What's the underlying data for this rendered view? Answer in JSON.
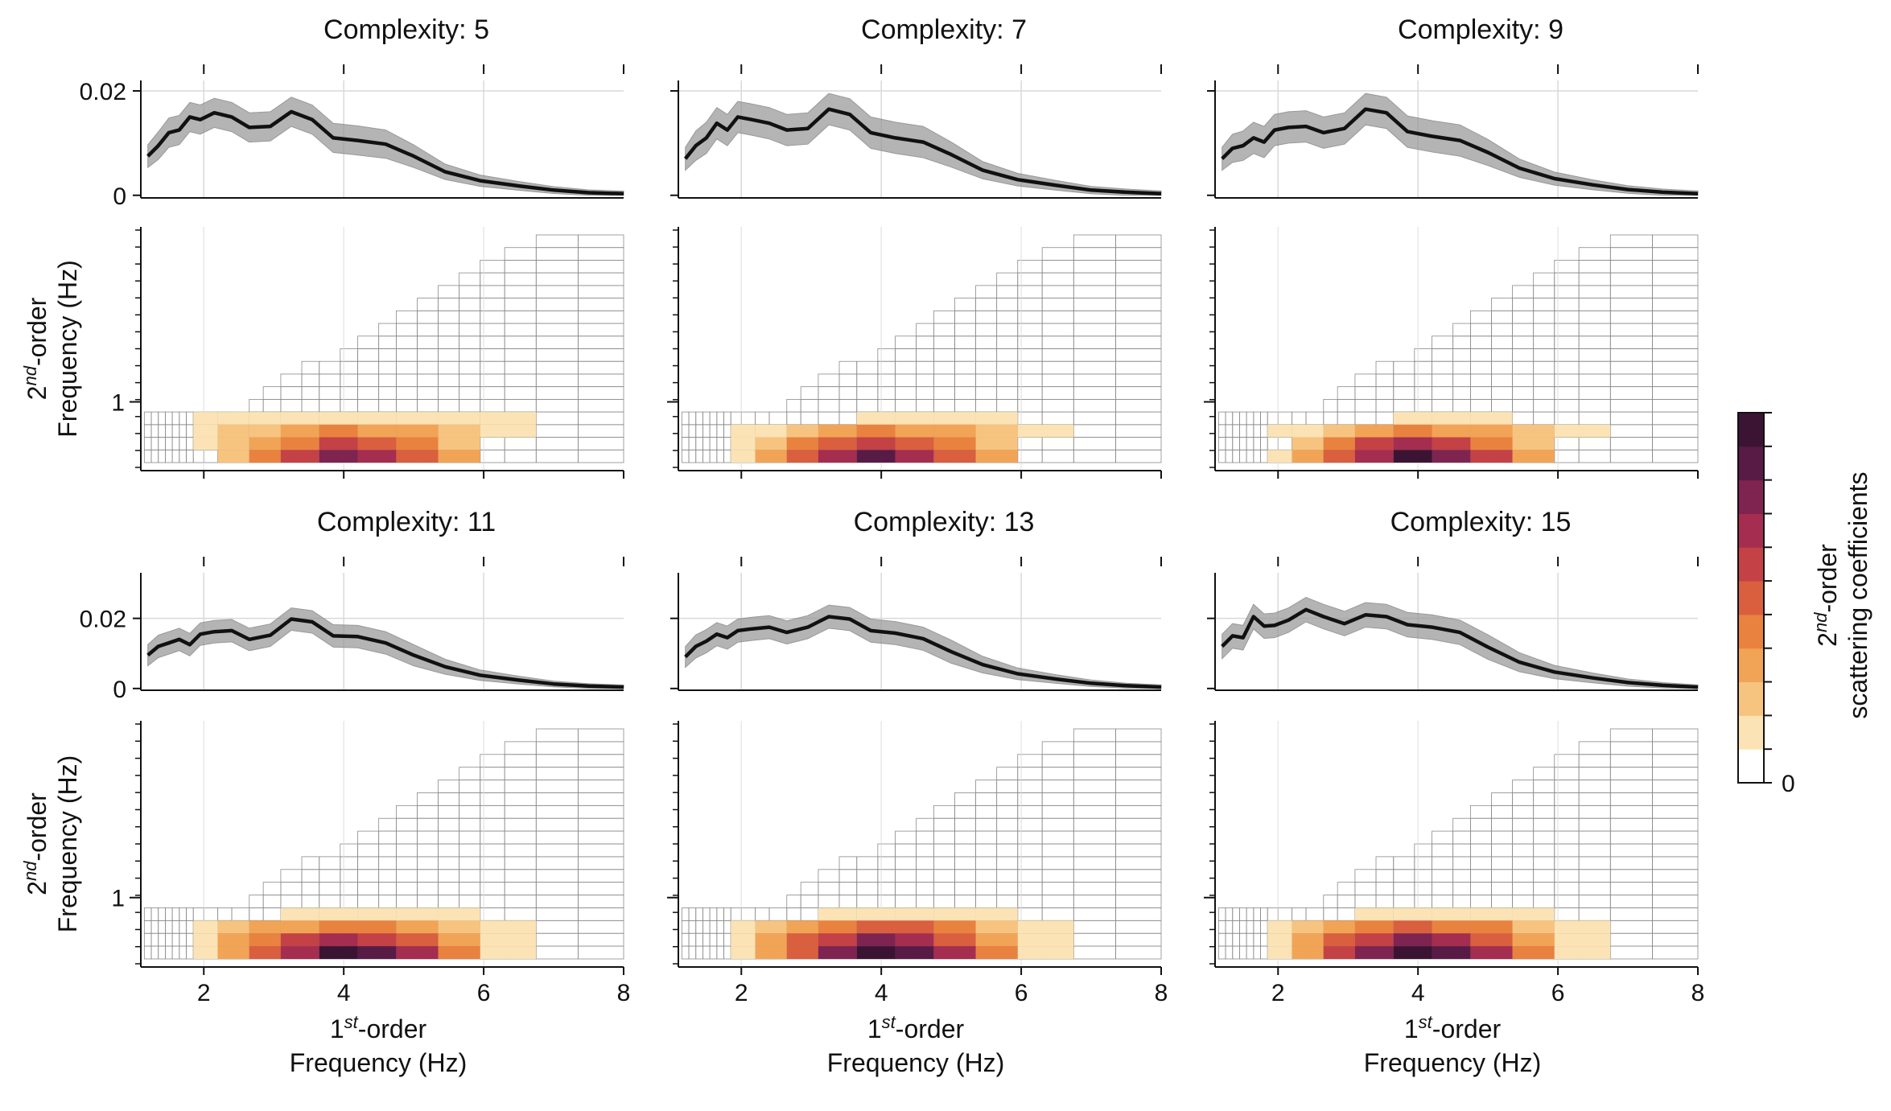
{
  "figure": {
    "panel_titles": [
      "Complexity: 5",
      "Complexity: 7",
      "Complexity: 9",
      "Complexity: 11",
      "Complexity: 13",
      "Complexity: 15"
    ],
    "x_ticks": [
      "2",
      "4",
      "6",
      "8"
    ],
    "y_ticks_top": [
      "0",
      "0.02"
    ],
    "y_tick_bottom": "1",
    "xlabel_line1": "1",
    "xlabel_sup": "st",
    "xlabel_line1_rest": "-order",
    "xlabel_line2": "Frequency (Hz)",
    "ylabel_line1": "2",
    "ylabel_sup": "nd",
    "ylabel_line1_rest": "-order",
    "ylabel_line2": "Frequency (Hz)",
    "colorbar": {
      "label_line1": "2",
      "label_sup": "nd",
      "label_line1_rest": "-order",
      "label_line2": "scattering coefficients",
      "tick_label": "0",
      "colors": [
        "#ffffff",
        "#fbe3b5",
        "#f7c47f",
        "#f2a456",
        "#e9823f",
        "#d95f3f",
        "#c44146",
        "#a52d4f",
        "#7f2350",
        "#581b45",
        "#3b1434"
      ]
    },
    "colors": {
      "line": "#111111",
      "band": "#9a9b9a",
      "grid": "#d9d9d9",
      "cell_edge": "#8a8a8a"
    }
  },
  "chart_data": [
    {
      "type": "line",
      "title": "Complexity: 5",
      "xlim": [
        1.1,
        8
      ],
      "ylim": [
        -0.0005,
        0.022
      ],
      "x": [
        1.2,
        1.35,
        1.5,
        1.65,
        1.8,
        1.95,
        2.15,
        2.4,
        2.65,
        2.95,
        3.25,
        3.55,
        3.85,
        4.2,
        4.6,
        5.0,
        5.45,
        5.95,
        6.5,
        7.0,
        7.5,
        8.0
      ],
      "y": [
        0.0075,
        0.0095,
        0.012,
        0.0125,
        0.015,
        0.0145,
        0.0158,
        0.015,
        0.013,
        0.0132,
        0.016,
        0.0145,
        0.011,
        0.0105,
        0.0098,
        0.0075,
        0.0045,
        0.0028,
        0.0018,
        0.001,
        0.0005,
        0.0003
      ],
      "y_upper": [
        0.0085,
        0.011,
        0.014,
        0.0155,
        0.0175,
        0.018,
        0.0198,
        0.0198,
        0.0175,
        0.017,
        0.0195,
        0.0185,
        0.0135,
        0.0125,
        0.0115,
        0.0088,
        0.0053,
        0.0033,
        0.0021,
        0.0012,
        0.0006,
        0.0004
      ],
      "y_lower": [
        0.0065,
        0.008,
        0.0095,
        0.0105,
        0.012,
        0.0115,
        0.0122,
        0.0115,
        0.01,
        0.0105,
        0.0128,
        0.0115,
        0.009,
        0.0088,
        0.0083,
        0.0062,
        0.0037,
        0.0023,
        0.0015,
        0.0008,
        0.0004,
        0.0002
      ],
      "heatmap": [
        {
          "rows": [
            [
              5.9,
              3.4
            ],
            [
              5.9,
              5.3
            ],
            [
              6.5,
              6.9
            ],
            [
              6.5,
              5.3
            ],
            [
              5.9,
              3.4
            ]
          ],
          "cols_start": 1.85,
          "cols": [
            1.85,
            2.2,
            2.65,
            3.1,
            3.65,
            4.2,
            4.75,
            5.4,
            5.95,
            6.75
          ]
        },
        {
          "levels": [
            [
              1,
              1,
              1,
              1,
              1,
              1,
              1,
              1,
              1
            ],
            [
              1,
              2,
              2,
              3,
              4,
              3,
              3,
              2,
              1
            ],
            [
              1,
              2,
              3,
              4,
              6,
              5,
              4,
              2,
              0
            ],
            [
              0,
              2,
              4,
              6,
              8,
              7,
              5,
              3,
              0
            ]
          ]
        }
      ]
    }
  ]
}
